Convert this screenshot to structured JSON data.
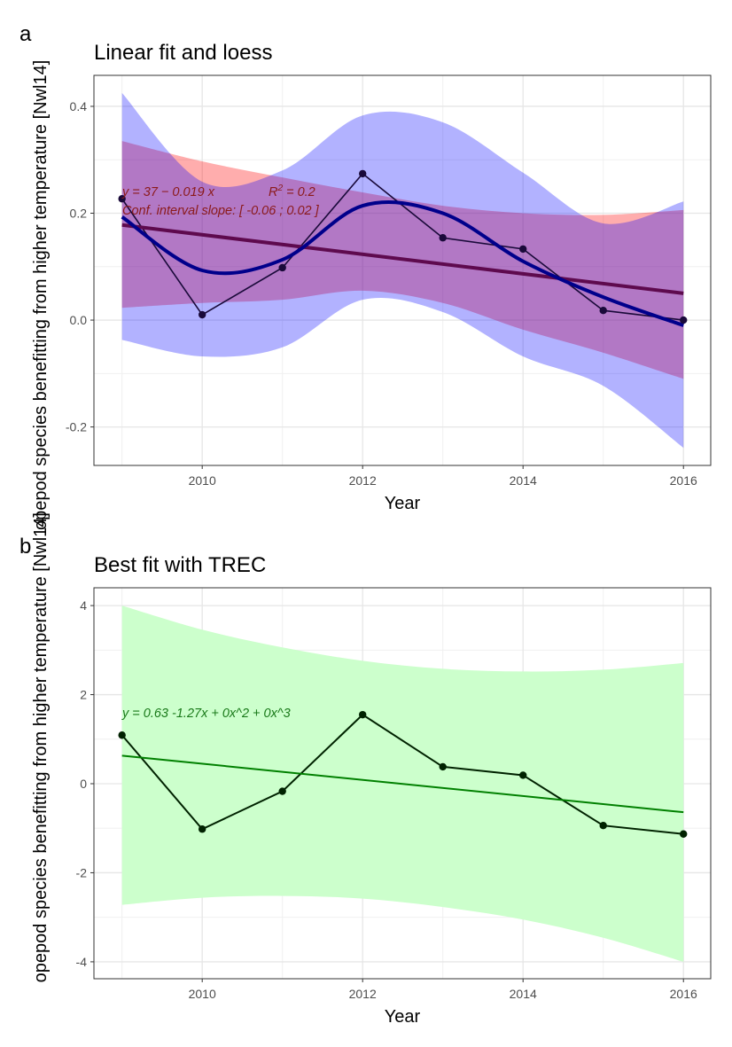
{
  "y_axis_label": "opepod species benefitting from higher temperature [Nwl14]",
  "chart_data": [
    {
      "tag": "a",
      "type": "line",
      "title": "Linear fit and loess",
      "xlabel": "Year",
      "ylabel": "opepod species benefitting from higher temperature [Nwl14]",
      "xlim": [
        2008.65,
        2016.34
      ],
      "ylim": [
        -0.272,
        0.458
      ],
      "x_ticks": [
        2010,
        2012,
        2014,
        2016
      ],
      "y_ticks": [
        -0.2,
        0.0,
        0.2,
        0.4
      ],
      "x_tick_labels": [
        "2010",
        "2012",
        "2014",
        "2016"
      ],
      "y_tick_labels": [
        "-0.2",
        "0.0",
        "0.2",
        "0.4"
      ],
      "grid": true,
      "x": [
        2009,
        2010,
        2011,
        2012,
        2013,
        2014,
        2015,
        2016
      ],
      "observed": [
        0.227,
        0.01,
        0.098,
        0.274,
        0.154,
        0.133,
        0.018,
        0.0
      ],
      "linear_fit": {
        "x": [
          2009,
          2016
        ],
        "y": [
          0.178,
          0.05
        ],
        "color": "#5e0a4e"
      },
      "linear_ci": {
        "upper": [
          0.335,
          0.297,
          0.267,
          0.239,
          0.214,
          0.2,
          0.197,
          0.206
        ],
        "lower": [
          0.023,
          0.032,
          0.038,
          0.055,
          0.032,
          -0.018,
          -0.061,
          -0.11
        ],
        "color": "#ff0000"
      },
      "loess": {
        "y": [
          0.193,
          0.093,
          0.113,
          0.214,
          0.2,
          0.11,
          0.043,
          -0.01
        ],
        "upper": [
          0.425,
          0.259,
          0.28,
          0.383,
          0.37,
          0.276,
          0.181,
          0.222
        ],
        "lower": [
          -0.037,
          -0.068,
          -0.051,
          0.038,
          0.015,
          -0.068,
          -0.123,
          -0.239
        ],
        "color": "#00008b",
        "band_color": "#0000ff"
      },
      "point_color": "#1a0a3a",
      "annotation_line1": "y = 37 − 0.019 x",
      "annotation_r2_label": "R",
      "annotation_r2_exp": "2",
      "annotation_r2_value": " = 0.2",
      "annotation_line2": "Conf. interval slope:  [ -0.06 ; 0.02 ]",
      "annotation_color": "#8b1a1a"
    },
    {
      "tag": "b",
      "type": "line",
      "title": "Best fit with TREC",
      "xlabel": "Year",
      "ylabel": "opepod species benefitting from higher temperature [Nwl14]",
      "xlim": [
        2008.65,
        2016.34
      ],
      "ylim": [
        -4.38,
        4.4
      ],
      "x_ticks": [
        2010,
        2012,
        2014,
        2016
      ],
      "y_ticks": [
        -4,
        -2,
        0,
        2,
        4
      ],
      "x_tick_labels": [
        "2010",
        "2012",
        "2014",
        "2016"
      ],
      "y_tick_labels": [
        "-4",
        "-2",
        "0",
        "2",
        "4"
      ],
      "grid": true,
      "x": [
        2009,
        2010,
        2011,
        2012,
        2013,
        2014,
        2015,
        2016
      ],
      "observed": [
        1.09,
        -1.02,
        -0.17,
        1.55,
        0.38,
        0.19,
        -0.94,
        -1.13
      ],
      "fit": {
        "x": [
          2009,
          2016
        ],
        "y": [
          0.63,
          -0.64
        ],
        "color": "#008000"
      },
      "ci": {
        "upper": [
          4.0,
          3.46,
          3.06,
          2.76,
          2.58,
          2.52,
          2.56,
          2.71
        ],
        "lower": [
          -2.72,
          -2.56,
          -2.52,
          -2.58,
          -2.77,
          -3.05,
          -3.46,
          -4.0
        ],
        "color": "#ccffcc"
      },
      "point_color": "#002200",
      "annotation_line1": "y =  0.63   -1.27x  + 0x^2  + 0x^3",
      "annotation_color": "#1a7a1a"
    }
  ]
}
